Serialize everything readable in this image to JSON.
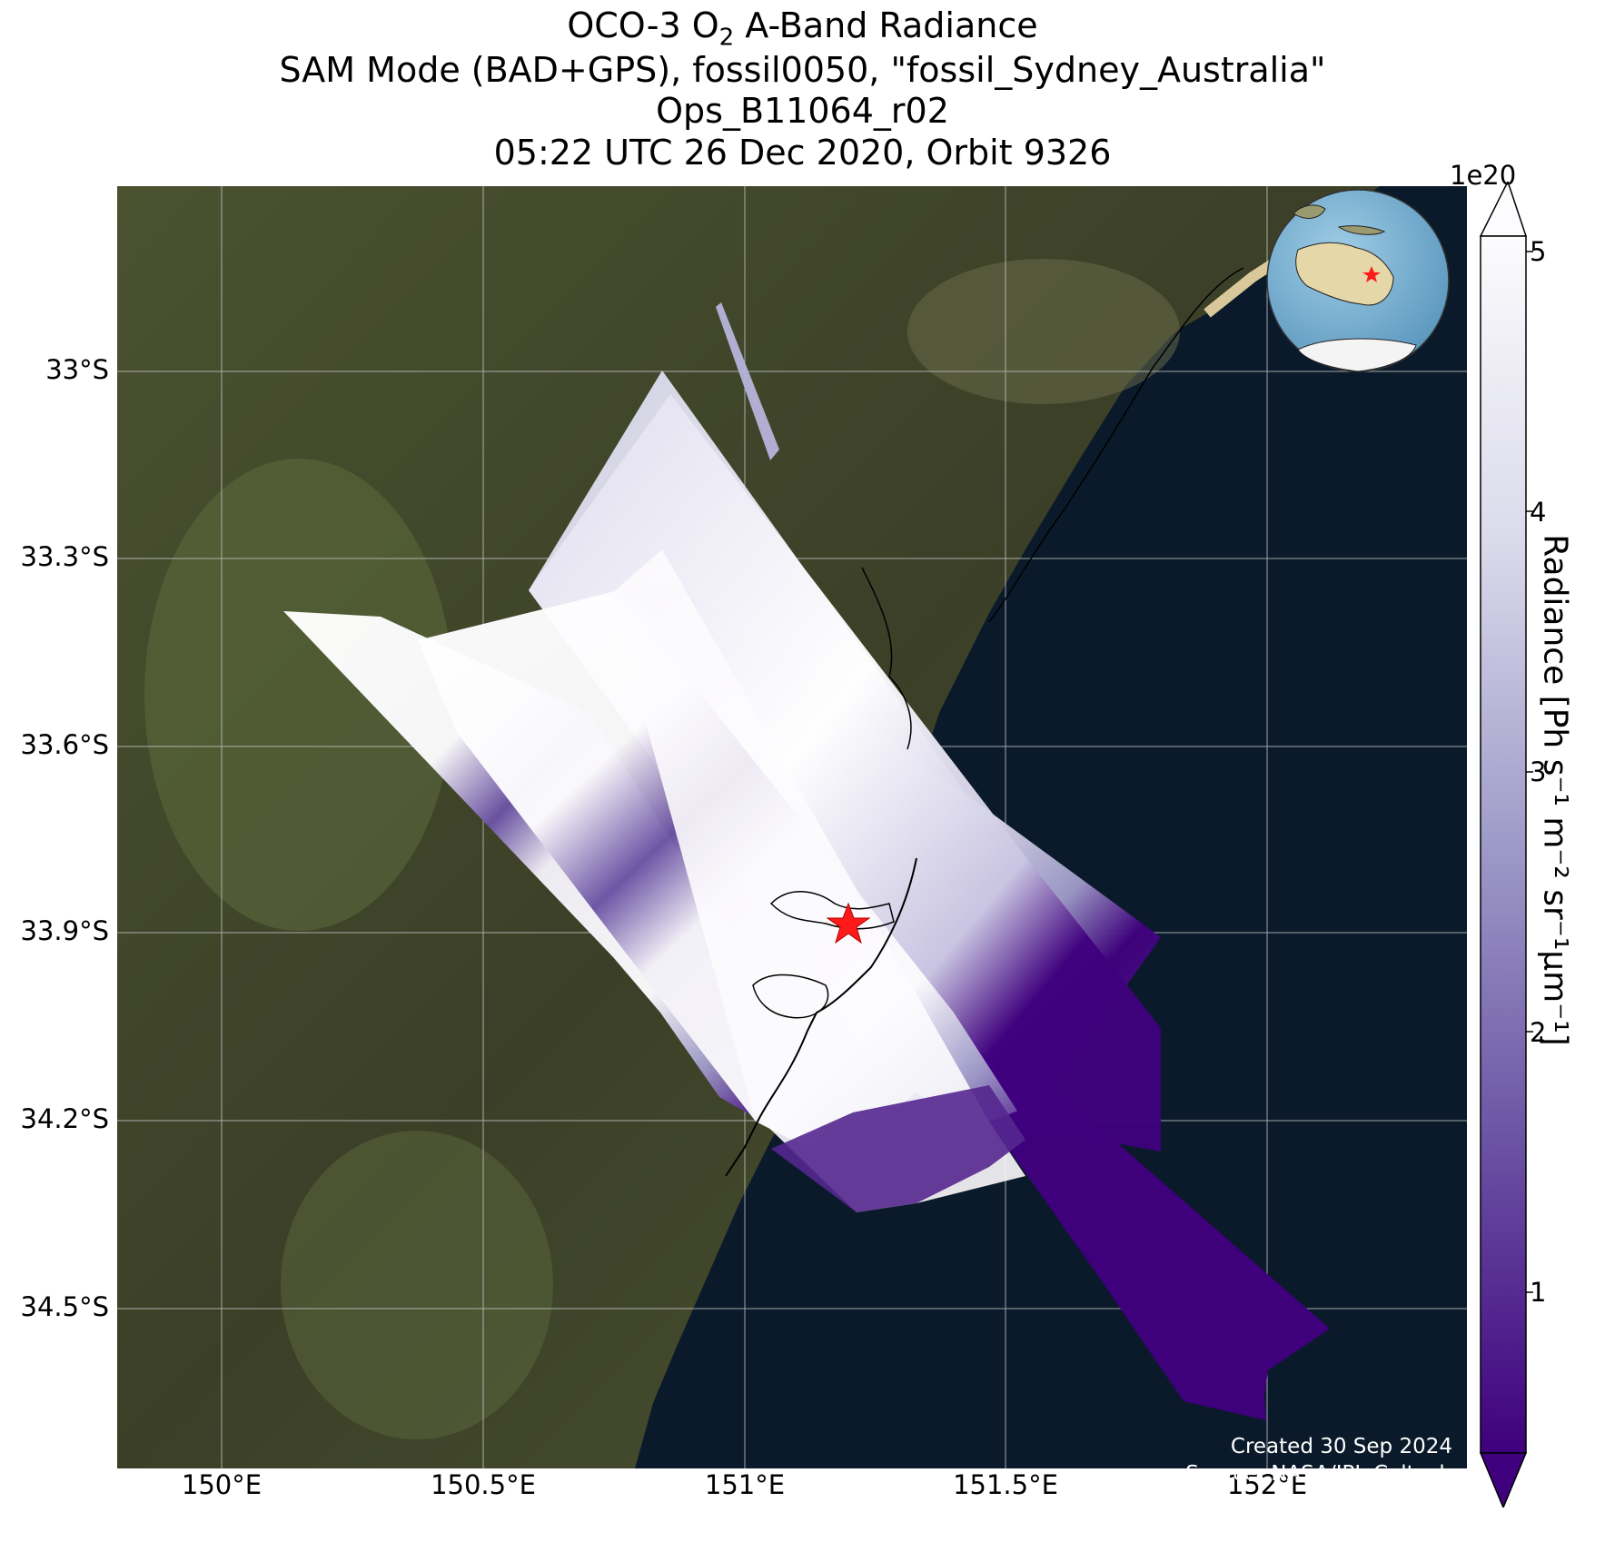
{
  "title": {
    "line1_pre": "OCO-3 O",
    "line1_sub": "2",
    "line1_post": " A-Band Radiance",
    "line2": "SAM Mode (BAD+GPS), fossil0050, \"fossil_Sydney_Australia\"",
    "line3": "Ops_B11064_r02",
    "line4": "05:22 UTC 26 Dec 2020, Orbit 9326"
  },
  "axes": {
    "lat_ticks": [
      "33°S",
      "33.3°S",
      "33.6°S",
      "33.9°S",
      "34.2°S",
      "34.5°S"
    ],
    "lon_ticks": [
      "150°E",
      "150.5°E",
      "151°E",
      "151.5°E",
      "152°E"
    ]
  },
  "colorbar": {
    "exponent": "1e20",
    "ticks": [
      "1",
      "2",
      "3",
      "4",
      "5"
    ],
    "label": "Radiance [Ph s⁻¹ m⁻² sr⁻¹μm⁻¹]",
    "cmap": "Purples_r",
    "color_low": "#3f007d",
    "color_high": "#fcfbfd"
  },
  "map_data": {
    "extent_lon": [
      149.9,
      152.4
    ],
    "extent_lat": [
      -34.75,
      -32.7
    ],
    "target": {
      "name": "fossil_Sydney_Australia",
      "lon": 151.21,
      "lat": -33.87,
      "marker": "red-star"
    },
    "inset": "globe-australia-locator",
    "background": "satellite-imagery"
  },
  "credits": {
    "created": "Created 30 Sep 2024",
    "source": "Source: NASA/JPL-Caltech"
  }
}
